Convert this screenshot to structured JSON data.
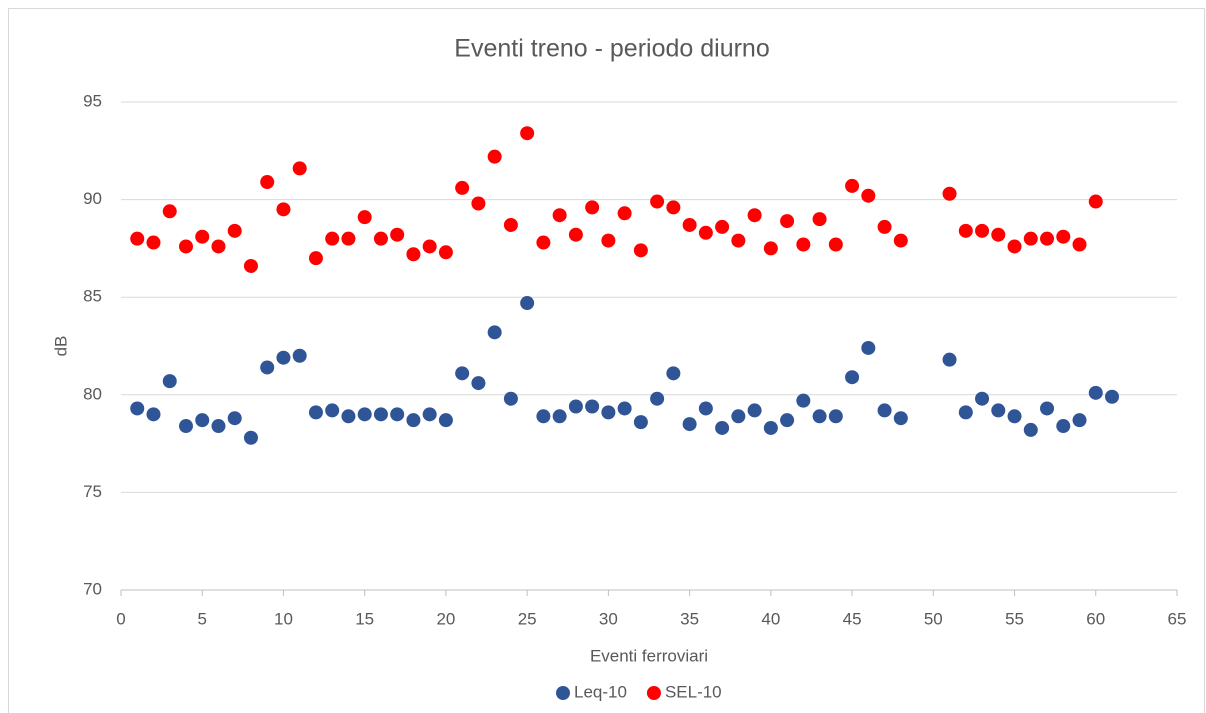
{
  "chart_data": {
    "type": "scatter",
    "title": "Eventi treno - periodo diurno",
    "x_label": "Eventi ferroviari",
    "y_label": "dB",
    "xlim": [
      0,
      65
    ],
    "xticks": [
      0,
      5,
      10,
      15,
      20,
      25,
      30,
      35,
      40,
      45,
      50,
      55,
      60,
      65
    ],
    "ylim": [
      70,
      95
    ],
    "yticks": [
      70,
      75,
      80,
      85,
      90,
      95
    ],
    "grid": true,
    "legend": "bottom",
    "series": [
      {
        "name": "Leq-10",
        "color": "#2f5597",
        "x": [
          1,
          2,
          3,
          4,
          5,
          6,
          7,
          8,
          9,
          10,
          11,
          12,
          13,
          14,
          15,
          16,
          17,
          18,
          19,
          20,
          21,
          22,
          23,
          24,
          25,
          26,
          27,
          28,
          29,
          30,
          31,
          32,
          33,
          34,
          35,
          36,
          37,
          38,
          39,
          40,
          41,
          42,
          43,
          44,
          45,
          46,
          47,
          48,
          51,
          52,
          53,
          54,
          55,
          56,
          57,
          58,
          59,
          60,
          61
        ],
        "values": [
          79.3,
          79.0,
          80.7,
          78.4,
          78.7,
          78.4,
          78.8,
          77.8,
          81.4,
          81.9,
          82.0,
          79.1,
          79.2,
          78.9,
          79.0,
          79.0,
          79.0,
          78.7,
          79.0,
          78.7,
          81.1,
          80.6,
          83.2,
          79.8,
          84.7,
          78.9,
          78.9,
          79.4,
          79.4,
          79.1,
          79.3,
          78.6,
          79.8,
          81.1,
          78.5,
          79.3,
          78.3,
          78.9,
          79.2,
          78.3,
          78.7,
          79.7,
          78.9,
          78.9,
          80.9,
          82.4,
          79.2,
          78.8,
          81.8,
          79.1,
          79.8,
          79.2,
          78.9,
          78.2,
          79.3,
          78.4,
          78.7,
          80.1,
          79.9
        ]
      },
      {
        "name": "SEL-10",
        "color": "#ff0000",
        "x": [
          1,
          2,
          3,
          4,
          5,
          6,
          7,
          8,
          9,
          10,
          11,
          12,
          13,
          14,
          15,
          16,
          17,
          18,
          19,
          20,
          21,
          22,
          23,
          24,
          25,
          26,
          27,
          28,
          29,
          30,
          31,
          32,
          33,
          34,
          35,
          36,
          37,
          38,
          39,
          40,
          41,
          42,
          43,
          44,
          45,
          46,
          47,
          48,
          51,
          52,
          53,
          54,
          55,
          56,
          57,
          58,
          59,
          60
        ],
        "values": [
          88.0,
          87.8,
          89.4,
          87.6,
          88.1,
          87.6,
          88.4,
          86.6,
          90.9,
          89.5,
          91.6,
          87.0,
          88.0,
          88.0,
          89.1,
          88.0,
          88.2,
          87.2,
          87.6,
          87.3,
          90.6,
          89.8,
          92.2,
          88.7,
          93.4,
          87.8,
          89.2,
          88.2,
          89.6,
          87.9,
          89.3,
          87.4,
          89.9,
          89.6,
          88.7,
          88.3,
          88.6,
          87.9,
          89.2,
          87.5,
          88.9,
          87.7,
          89.0,
          87.7,
          90.7,
          90.2,
          88.6,
          87.9,
          90.3,
          88.4,
          88.4,
          88.2,
          87.6,
          88.0,
          88.0,
          88.1,
          87.7,
          89.9
        ]
      }
    ]
  }
}
